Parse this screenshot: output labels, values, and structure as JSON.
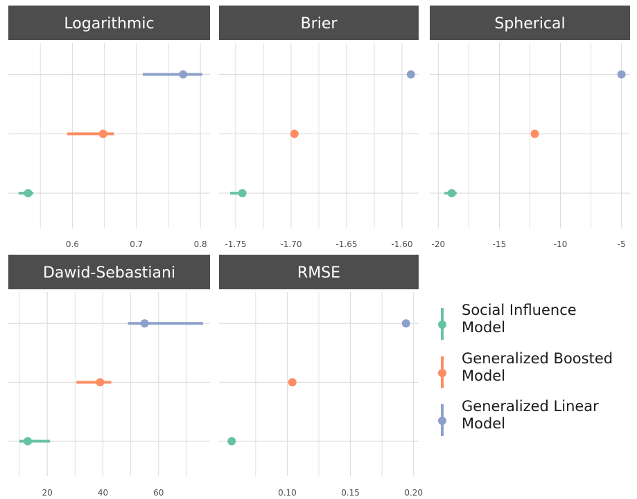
{
  "colors": {
    "strip_bg": "#4d4d4d",
    "strip_text": "#ffffff",
    "grid": "#dcdcdc",
    "tick_text": "#4d4d4d"
  },
  "legend": {
    "placement": "right",
    "items": [
      {
        "name": "Social Influence Model",
        "lines": [
          "Social Influence",
          "Model"
        ],
        "color": "#66c2a5"
      },
      {
        "name": "Generalized Boosted Model",
        "lines": [
          "Generalized Boosted",
          "Model"
        ],
        "color": "#fc8d62"
      },
      {
        "name": "Generalized Linear Model",
        "lines": [
          "Generalized Linear",
          "Model"
        ],
        "color": "#8da0cb"
      }
    ]
  },
  "chart_data": [
    {
      "type": "scatter",
      "title": "Logarithmic",
      "xlim": [
        0.5,
        0.815
      ],
      "xticks": [
        0.6,
        0.7,
        0.8
      ],
      "xticklabels": [
        "0.6",
        "0.7",
        "0.8"
      ],
      "minor_grid": [
        0.55,
        0.65,
        0.75
      ],
      "series": [
        {
          "name": "Generalized Linear Model",
          "x": 0.773,
          "lo": 0.71,
          "hi": 0.803,
          "color": "#8da0cb"
        },
        {
          "name": "Generalized Boosted Model",
          "x": 0.648,
          "lo": 0.592,
          "hi": 0.665,
          "color": "#fc8d62"
        },
        {
          "name": "Social Influence Model",
          "x": 0.531,
          "lo": 0.516,
          "hi": 0.539,
          "color": "#66c2a5"
        }
      ]
    },
    {
      "type": "scatter",
      "title": "Brier",
      "xlim": [
        -1.765,
        -1.585
      ],
      "xticks": [
        -1.75,
        -1.7,
        -1.65,
        -1.6
      ],
      "xticklabels": [
        "-1.75",
        "-1.70",
        "-1.65",
        "-1.60"
      ],
      "minor_grid": [
        -1.725,
        -1.675,
        -1.625
      ],
      "series": [
        {
          "name": "Generalized Linear Model",
          "x": -1.592,
          "lo": null,
          "hi": null,
          "color": "#8da0cb"
        },
        {
          "name": "Generalized Boosted Model",
          "x": -1.697,
          "lo": null,
          "hi": null,
          "color": "#fc8d62"
        },
        {
          "name": "Social Influence Model",
          "x": -1.744,
          "lo": -1.755,
          "hi": -1.742,
          "color": "#66c2a5"
        }
      ]
    },
    {
      "type": "scatter",
      "title": "Spherical",
      "xlim": [
        -20.7,
        -4.3
      ],
      "xticks": [
        -20,
        -15,
        -10,
        -5
      ],
      "xticklabels": [
        "-20",
        "-15",
        "-10",
        "-5"
      ],
      "minor_grid": [
        -17.5,
        -12.5,
        -7.5
      ],
      "series": [
        {
          "name": "Generalized Linear Model",
          "x": -5.0,
          "lo": null,
          "hi": null,
          "color": "#8da0cb"
        },
        {
          "name": "Generalized Boosted Model",
          "x": -12.1,
          "lo": null,
          "hi": null,
          "color": "#fc8d62"
        },
        {
          "name": "Social Influence Model",
          "x": -18.9,
          "lo": -19.5,
          "hi": -18.5,
          "color": "#66c2a5"
        }
      ]
    },
    {
      "type": "scatter",
      "title": "Dawid-Sebastiani",
      "xlim": [
        6,
        78.5
      ],
      "xticks": [
        20,
        40,
        60
      ],
      "xticklabels": [
        "20",
        "40",
        "60"
      ],
      "minor_grid": [
        10,
        30,
        50,
        70
      ],
      "series": [
        {
          "name": "Generalized Linear Model",
          "x": 55,
          "lo": 49,
          "hi": 76,
          "color": "#8da0cb"
        },
        {
          "name": "Generalized Boosted Model",
          "x": 39,
          "lo": 30.5,
          "hi": 43,
          "color": "#fc8d62"
        },
        {
          "name": "Social Influence Model",
          "x": 13,
          "lo": 10,
          "hi": 21,
          "color": "#66c2a5"
        }
      ]
    },
    {
      "type": "scatter",
      "title": "RMSE",
      "xlim": [
        0.046,
        0.204
      ],
      "xticks": [
        0.1,
        0.15,
        0.2
      ],
      "xticklabels": [
        "0.10",
        "0.15",
        "0.20"
      ],
      "minor_grid": [
        0.075,
        0.125,
        0.175
      ],
      "series": [
        {
          "name": "Generalized Linear Model",
          "x": 0.194,
          "lo": null,
          "hi": null,
          "color": "#8da0cb"
        },
        {
          "name": "Generalized Boosted Model",
          "x": 0.104,
          "lo": null,
          "hi": null,
          "color": "#fc8d62"
        },
        {
          "name": "Social Influence Model",
          "x": 0.056,
          "lo": null,
          "hi": null,
          "color": "#66c2a5"
        }
      ]
    }
  ]
}
